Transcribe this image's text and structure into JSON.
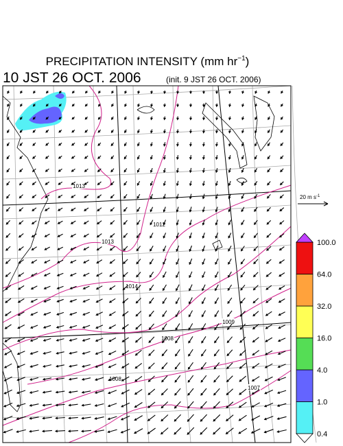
{
  "header": {
    "title": "PRECIPITATION INTENSITY (mm hr",
    "title_exponent": "−1",
    "title_close": ")",
    "valid_time": "10 JST 26 OCT. 2006",
    "init_time": "(init. 9 JST 26 OCT. 2006)"
  },
  "wind_scale": {
    "label": "20 m s",
    "exponent": "-1"
  },
  "isobar_labels": [
    "1013",
    "1012",
    "1013",
    "1014",
    "1009",
    "1008",
    "1008",
    "1007"
  ],
  "colorbar": {
    "levels": [
      {
        "value": 0.4,
        "label": "0.4"
      },
      {
        "value": 1,
        "label": "1.0"
      },
      {
        "value": 4,
        "label": "4.0"
      },
      {
        "value": 16,
        "label": "16.0"
      },
      {
        "value": 32,
        "label": "32.0"
      },
      {
        "value": 64,
        "label": "64.0"
      },
      {
        "value": 100,
        "label": "100.0"
      }
    ],
    "colors": [
      "#55f0f5",
      "#6464ff",
      "#55dd55",
      "#ffff55",
      "#ffa23c",
      "#ee1111"
    ],
    "over_color": "#c040ff"
  }
}
